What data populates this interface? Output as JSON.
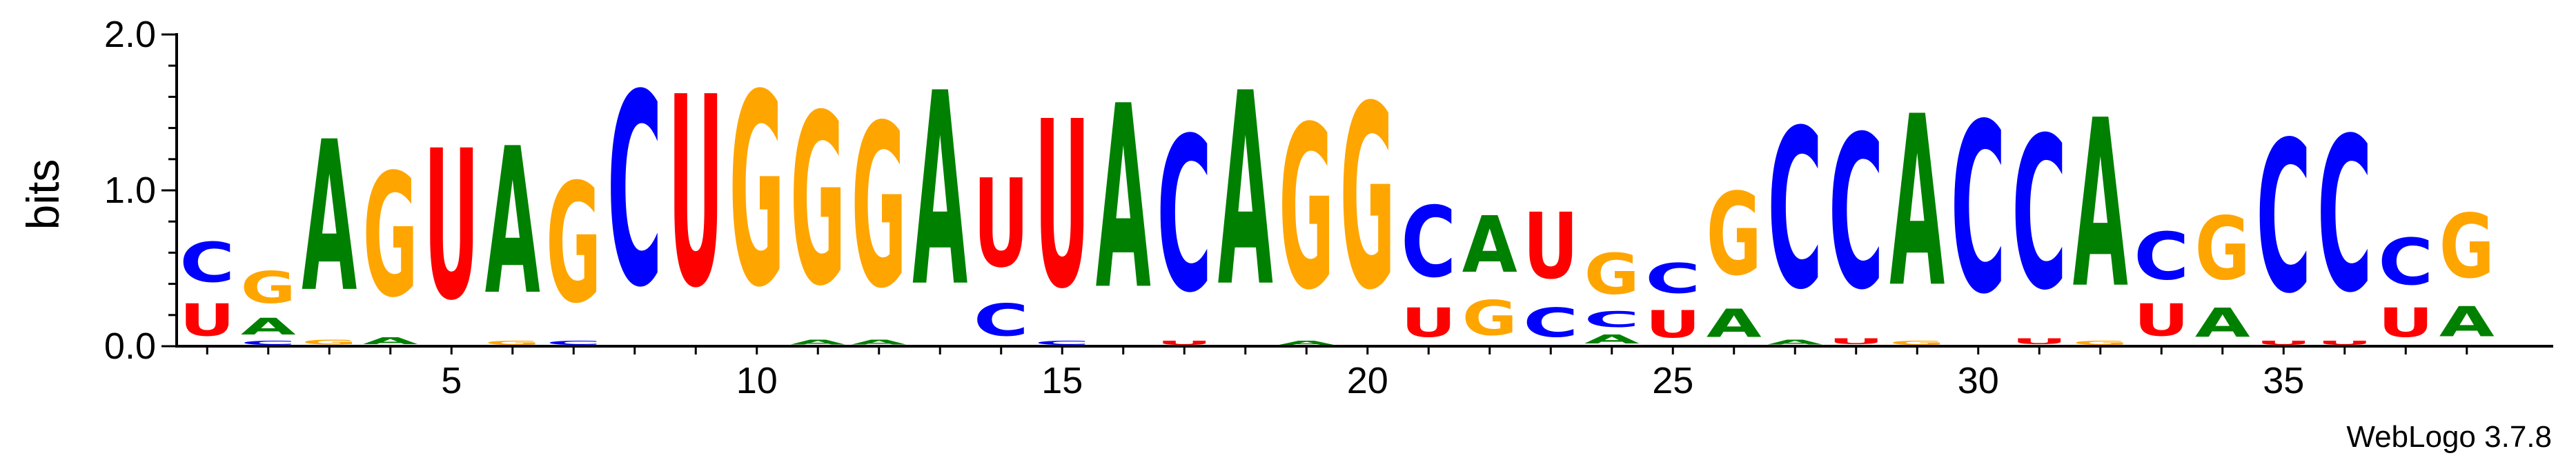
{
  "chart_data": {
    "type": "sequence-logo",
    "ylabel": "bits",
    "ylim": [
      0,
      2.0
    ],
    "y_ticks": [
      "0.0",
      "1.0",
      "2.0"
    ],
    "x_ticks": [
      "5",
      "10",
      "15",
      "20",
      "25",
      "30",
      "35"
    ],
    "x_tick_positions": [
      5,
      10,
      15,
      20,
      25,
      30,
      35
    ],
    "footer": "WebLogo 3.7.8",
    "colors": {
      "A": "#008000",
      "C": "#0000ff",
      "G": "#ffa500",
      "U": "#ff0000"
    },
    "positions": [
      {
        "pos": 1,
        "stack": [
          [
            "U",
            0.33
          ],
          [
            "C",
            0.41
          ]
        ]
      },
      {
        "pos": 2,
        "stack": [
          [
            "C",
            0.04
          ],
          [
            "A",
            0.17
          ],
          [
            "G",
            0.33
          ]
        ]
      },
      {
        "pos": 3,
        "stack": [
          [
            "G",
            0.05
          ],
          [
            "A",
            1.55
          ]
        ]
      },
      {
        "pos": 4,
        "stack": [
          [
            "A",
            0.07
          ],
          [
            "G",
            1.27
          ]
        ]
      },
      {
        "pos": 5,
        "stack": [
          [
            "U",
            1.54
          ]
        ]
      },
      {
        "pos": 6,
        "stack": [
          [
            "G",
            0.04
          ],
          [
            "A",
            1.51
          ]
        ]
      },
      {
        "pos": 7,
        "stack": [
          [
            "C",
            0.04
          ],
          [
            "G",
            1.23
          ]
        ]
      },
      {
        "pos": 8,
        "stack": [
          [
            "C",
            1.98
          ]
        ]
      },
      {
        "pos": 9,
        "stack": [
          [
            "U",
            1.96
          ]
        ]
      },
      {
        "pos": 10,
        "stack": [
          [
            "G",
            1.98
          ]
        ]
      },
      {
        "pos": 11,
        "stack": [
          [
            "A",
            0.05
          ],
          [
            "G",
            1.76
          ]
        ]
      },
      {
        "pos": 12,
        "stack": [
          [
            "A",
            0.05
          ],
          [
            "G",
            1.68
          ]
        ]
      },
      {
        "pos": 13,
        "stack": [
          [
            "A",
            1.99
          ]
        ]
      },
      {
        "pos": 14,
        "stack": [
          [
            "C",
            0.33
          ],
          [
            "U",
            0.91
          ]
        ]
      },
      {
        "pos": 15,
        "stack": [
          [
            "C",
            0.04
          ],
          [
            "U",
            1.72
          ]
        ]
      },
      {
        "pos": 16,
        "stack": [
          [
            "A",
            1.89
          ]
        ]
      },
      {
        "pos": 17,
        "stack": [
          [
            "U",
            0.04
          ],
          [
            "C",
            1.59
          ]
        ]
      },
      {
        "pos": 18,
        "stack": [
          [
            "A",
            1.99
          ]
        ]
      },
      {
        "pos": 19,
        "stack": [
          [
            "A",
            0.04
          ],
          [
            "G",
            1.68
          ]
        ]
      },
      {
        "pos": 20,
        "stack": [
          [
            "G",
            1.89
          ]
        ]
      },
      {
        "pos": 21,
        "stack": [
          [
            "U",
            0.3
          ],
          [
            "C",
            0.73
          ]
        ]
      },
      {
        "pos": 22,
        "stack": [
          [
            "G",
            0.36
          ],
          [
            "A",
            0.58
          ]
        ]
      },
      {
        "pos": 23,
        "stack": [
          [
            "C",
            0.3
          ],
          [
            "U",
            0.68
          ]
        ]
      },
      {
        "pos": 24,
        "stack": [
          [
            "A",
            0.09
          ],
          [
            "C",
            0.16
          ],
          [
            "G",
            0.42
          ]
        ]
      },
      {
        "pos": 25,
        "stack": [
          [
            "U",
            0.28
          ],
          [
            "C",
            0.31
          ]
        ]
      },
      {
        "pos": 26,
        "stack": [
          [
            "A",
            0.29
          ],
          [
            "G",
            0.85
          ]
        ]
      },
      {
        "pos": 27,
        "stack": [
          [
            "A",
            0.05
          ],
          [
            "C",
            1.64
          ]
        ]
      },
      {
        "pos": 28,
        "stack": [
          [
            "U",
            0.06
          ],
          [
            "C",
            1.58
          ]
        ]
      },
      {
        "pos": 29,
        "stack": [
          [
            "G",
            0.04
          ],
          [
            "A",
            1.76
          ]
        ]
      },
      {
        "pos": 30,
        "stack": [
          [
            "C",
            1.75
          ]
        ]
      },
      {
        "pos": 31,
        "stack": [
          [
            "U",
            0.06
          ],
          [
            "C",
            1.57
          ]
        ]
      },
      {
        "pos": 32,
        "stack": [
          [
            "G",
            0.04
          ],
          [
            "A",
            1.73
          ]
        ]
      },
      {
        "pos": 33,
        "stack": [
          [
            "U",
            0.33
          ],
          [
            "C",
            0.49
          ]
        ]
      },
      {
        "pos": 34,
        "stack": [
          [
            "A",
            0.3
          ],
          [
            "G",
            0.65
          ]
        ]
      },
      {
        "pos": 35,
        "stack": [
          [
            "U",
            0.04
          ],
          [
            "C",
            1.56
          ]
        ]
      },
      {
        "pos": 36,
        "stack": [
          [
            "U",
            0.04
          ],
          [
            "C",
            1.59
          ]
        ]
      },
      {
        "pos": 37,
        "stack": [
          [
            "U",
            0.3
          ],
          [
            "C",
            0.48
          ]
        ]
      },
      {
        "pos": 38,
        "stack": [
          [
            "A",
            0.31
          ],
          [
            "G",
            0.66
          ]
        ]
      }
    ]
  }
}
